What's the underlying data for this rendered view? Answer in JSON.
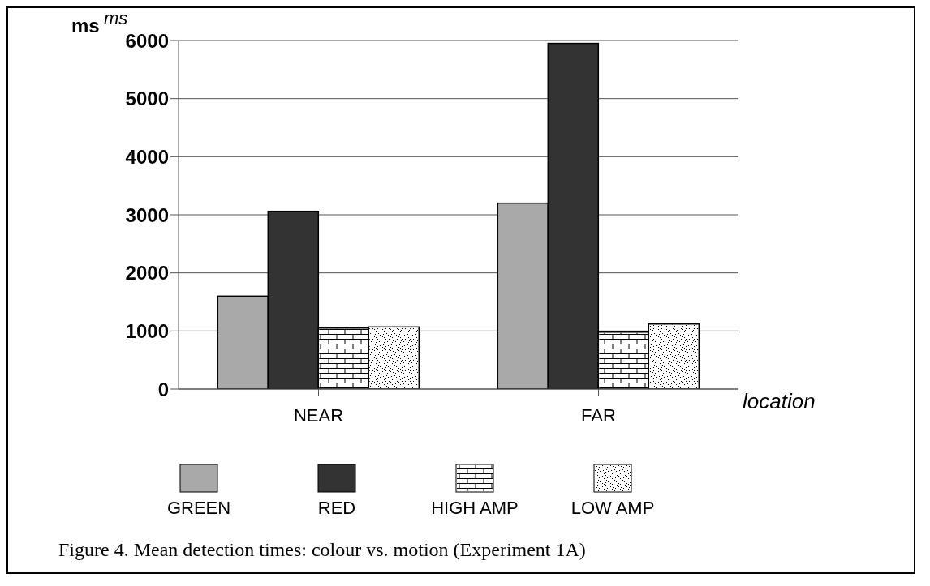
{
  "chart_data": {
    "type": "bar",
    "title": "Figure 4.  Mean detection times: colour vs. motion (Experiment 1A)",
    "ylabel": "ms",
    "xlabel": "location",
    "annotations": [
      "ms"
    ],
    "categories": [
      "NEAR",
      "FAR"
    ],
    "series": [
      {
        "name": "GREEN",
        "color": "#a9a9a9",
        "values": [
          1600,
          3200
        ]
      },
      {
        "name": "RED",
        "color": "#333333",
        "values": [
          3060,
          5950
        ]
      },
      {
        "name": "HIGH AMP",
        "color": "#ffffff",
        "values": [
          1050,
          980
        ]
      },
      {
        "name": "LOW AMP",
        "color": "#ffffff",
        "values": [
          1070,
          1120
        ]
      }
    ],
    "ylim": [
      0,
      6000
    ],
    "yticks": [
      0,
      1000,
      2000,
      3000,
      4000,
      5000,
      6000
    ],
    "grid": "y",
    "legend": "bottom"
  }
}
